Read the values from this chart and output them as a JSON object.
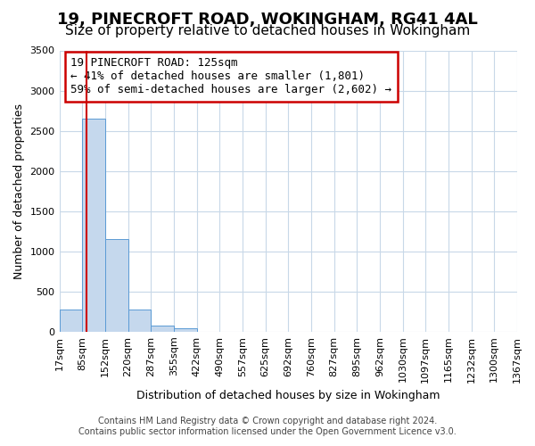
{
  "title": "19, PINECROFT ROAD, WOKINGHAM, RG41 4AL",
  "subtitle": "Size of property relative to detached houses in Wokingham",
  "xlabel": "Distribution of detached houses by size in Wokingham",
  "ylabel": "Number of detached properties",
  "bin_labels": [
    "17sqm",
    "85sqm",
    "152sqm",
    "220sqm",
    "287sqm",
    "355sqm",
    "422sqm",
    "490sqm",
    "557sqm",
    "625sqm",
    "692sqm",
    "760sqm",
    "827sqm",
    "895sqm",
    "962sqm",
    "1030sqm",
    "1097sqm",
    "1165sqm",
    "1232sqm",
    "1300sqm",
    "1367sqm"
  ],
  "bar_values": [
    280,
    2650,
    1150,
    280,
    80,
    40,
    0,
    0,
    0,
    0,
    0,
    0,
    0,
    0,
    0,
    0,
    0,
    0,
    0,
    0
  ],
  "bar_color": "#c5d8ed",
  "bar_edge_color": "#5b9bd5",
  "vline_bin_index": 1.18,
  "ylim": [
    0,
    3500
  ],
  "yticks": [
    0,
    500,
    1000,
    1500,
    2000,
    2500,
    3000,
    3500
  ],
  "annotation_box_text": "19 PINECROFT ROAD: 125sqm\n← 41% of detached houses are smaller (1,801)\n59% of semi-detached houses are larger (2,602) →",
  "annotation_box_color": "#cc0000",
  "footer_line1": "Contains HM Land Registry data © Crown copyright and database right 2024.",
  "footer_line2": "Contains public sector information licensed under the Open Government Licence v3.0.",
  "bg_color": "#ffffff",
  "grid_color": "#c8d8e8",
  "title_fontsize": 13,
  "subtitle_fontsize": 11,
  "axis_label_fontsize": 9,
  "tick_fontsize": 8,
  "annotation_fontsize": 9,
  "footer_fontsize": 7
}
